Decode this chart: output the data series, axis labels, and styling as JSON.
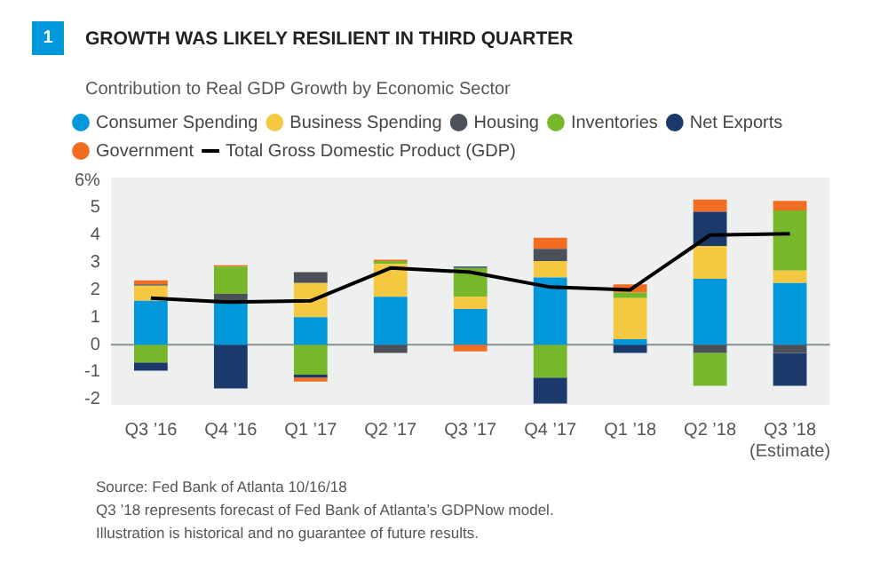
{
  "chart_data": {
    "type": "bar",
    "title": "GROWTH WAS LIKELY RESILIENT IN THIRD QUARTER",
    "subtitle": "Contribution to Real GDP Growth by Economic Sector",
    "categories": [
      "Q3 ’16",
      "Q4 ’16",
      "Q1 ’17",
      "Q2 ’17",
      "Q3 ’17",
      "Q4 ’17",
      "Q1 ’18",
      "Q2 ’18",
      "Q3 ’18\n(Estimate)"
    ],
    "stacked": true,
    "series": [
      {
        "name": "Consumer Spending",
        "color": "#0098db",
        "values": [
          1.6,
          1.5,
          1.0,
          1.75,
          1.3,
          2.45,
          0.2,
          2.4,
          2.25
        ]
      },
      {
        "name": "Business Spending",
        "color": "#f5c842",
        "values": [
          0.55,
          null,
          1.25,
          1.2,
          0.45,
          0.6,
          1.5,
          1.2,
          0.45
        ]
      },
      {
        "name": "Housing",
        "color": "#4a5158",
        "values": [
          0.05,
          0.35,
          0.4,
          -0.3,
          null,
          0.45,
          null,
          -0.3,
          -0.3
        ]
      },
      {
        "name": "Inventories",
        "color": "#76b82a",
        "values": [
          -0.65,
          1.0,
          -1.1,
          0.1,
          1.05,
          -1.2,
          0.2,
          -1.2,
          2.2
        ]
      },
      {
        "name": "Net Exports",
        "color": "#1b3a6b",
        "values": [
          -0.3,
          -1.6,
          -0.1,
          null,
          0.05,
          -0.95,
          -0.3,
          1.25,
          -1.2
        ]
      },
      {
        "name": "Government",
        "color": "#f26c21",
        "values": [
          0.15,
          0.05,
          -0.15,
          0.05,
          -0.25,
          0.4,
          0.3,
          0.45,
          0.35
        ]
      },
      {
        "name": "Total Gross Domestic Product (GDP)",
        "type": "line",
        "color": "#000000",
        "values": [
          1.7,
          1.55,
          1.6,
          2.8,
          2.65,
          2.1,
          2.0,
          4.0,
          4.05
        ]
      }
    ],
    "ylim": [
      -2.2,
      6.1
    ],
    "yticks": [
      -2,
      -1,
      0,
      1,
      2,
      3,
      4,
      5,
      {
        "value": 6,
        "label": "6%"
      }
    ],
    "ref_lines": [
      {
        "axis": "y",
        "value": 0,
        "color": "#8a8f94"
      }
    ],
    "legend": "top left",
    "marker": "none",
    "annotations": [
      "1",
      "Source: Fed Bank of Atlanta   10/16/18",
      "Q3 ’18 represents forecast of Fed Bank of Atlanta’s GDPNow model.",
      "Illustration is historical and no guarantee of future results."
    ]
  }
}
